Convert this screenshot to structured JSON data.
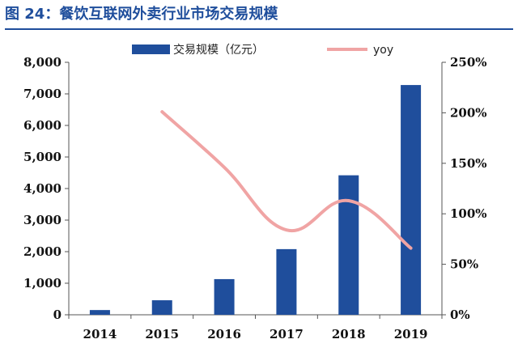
{
  "title": "图 24：餐饮互联网外卖行业市场交易规模",
  "colors": {
    "title": "#1f4e9c",
    "bar": "#1f4e9c",
    "line": "#f0a4a4",
    "axis": "#555555"
  },
  "chart_data": {
    "type": "bar",
    "categories": [
      "2014",
      "2015",
      "2016",
      "2017",
      "2018",
      "2019"
    ],
    "series": [
      {
        "name": "交易规模（亿元）",
        "type": "bar",
        "axis": "left",
        "values": [
          150,
          460,
          1130,
          2080,
          4420,
          7280
        ]
      },
      {
        "name": "yoy",
        "type": "line",
        "axis": "right",
        "values": [
          null,
          2.01,
          1.46,
          0.84,
          1.13,
          0.66
        ]
      }
    ],
    "y_left": {
      "ylim": [
        0,
        8000
      ],
      "ticks": [
        0,
        1000,
        2000,
        3000,
        4000,
        5000,
        6000,
        7000,
        8000
      ],
      "tick_labels": [
        "0",
        "1,000",
        "2,000",
        "3,000",
        "4,000",
        "5,000",
        "6,000",
        "7,000",
        "8,000"
      ]
    },
    "y_right": {
      "ylim": [
        0,
        2.5
      ],
      "ticks": [
        0,
        0.5,
        1.0,
        1.5,
        2.0,
        2.5
      ],
      "tick_labels": [
        "0%",
        "50%",
        "100%",
        "150%",
        "200%",
        "250%"
      ]
    },
    "legend": {
      "position": "top"
    },
    "grid": false
  }
}
